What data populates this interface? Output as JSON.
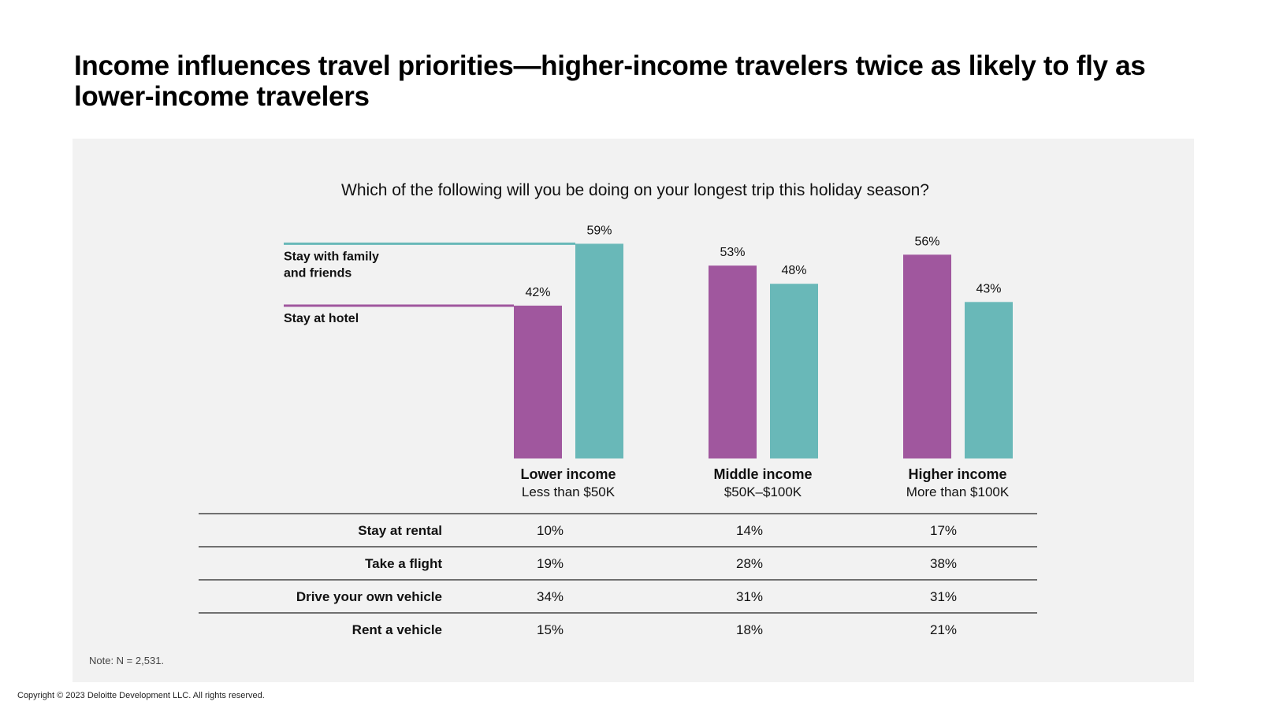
{
  "header": {
    "title": "Income influences travel priorities—higher-income travelers twice as likely to fly as lower-income travelers"
  },
  "footer": {
    "copyright": "Copyright © 2023 Deloitte Development LLC. All rights reserved."
  },
  "chart_data": {
    "type": "bar",
    "title": "Which of the following will you be doing on your longest trip this holiday season?",
    "categories": [
      {
        "name": "Lower income",
        "sub": "Less than $50K"
      },
      {
        "name": "Middle income",
        "sub": "$50K–$100K"
      },
      {
        "name": "Higher income",
        "sub": "More than $100K"
      }
    ],
    "series": [
      {
        "name": "Stay at hotel",
        "color": "#a0579e",
        "values": [
          42,
          53,
          56
        ]
      },
      {
        "name": "Stay with family and friends",
        "legend_lines": [
          "Stay with family",
          "and friends"
        ],
        "color": "#69b8b8",
        "values": [
          59,
          48,
          43
        ]
      }
    ],
    "value_suffix": "%",
    "table": {
      "rows": [
        {
          "label": "Stay at rental",
          "values": [
            "10%",
            "14%",
            "17%"
          ]
        },
        {
          "label": "Take a flight",
          "values": [
            "19%",
            "28%",
            "38%"
          ]
        },
        {
          "label": "Drive your own vehicle",
          "values": [
            "34%",
            "31%",
            "31%"
          ]
        },
        {
          "label": "Rent a vehicle",
          "values": [
            "15%",
            "18%",
            "21%"
          ]
        }
      ]
    },
    "note": "Note: N = 2,531."
  }
}
